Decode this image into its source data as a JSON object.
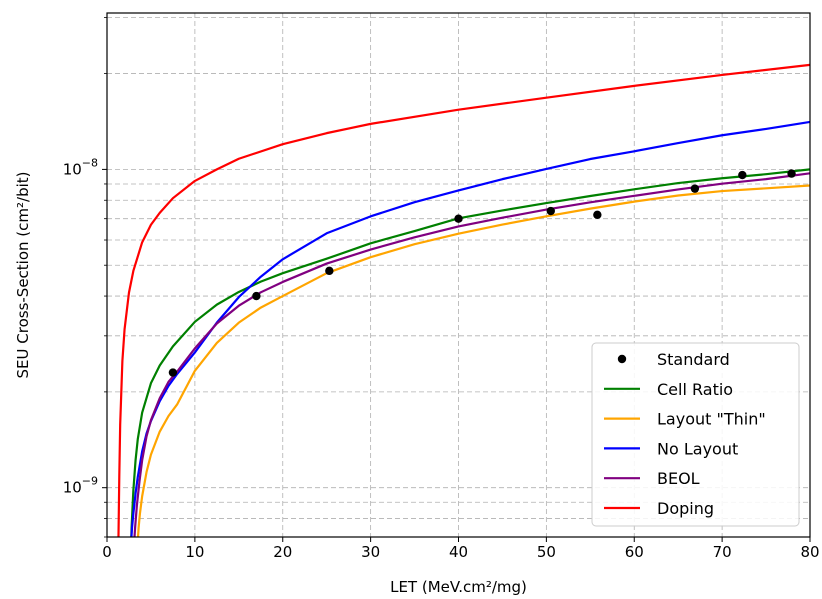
{
  "chart_data": {
    "type": "scatter",
    "xlabel": "LET (MeV.cm²/mg)",
    "ylabel": "SEU Cross-Section (cm²/bit)",
    "xlim": [
      0,
      80
    ],
    "ylim": [
      7e-10,
      3.1e-08
    ],
    "yscale": "log",
    "grid": true,
    "legend_position": "lower right",
    "x_ticks": [
      {
        "value": 0,
        "label": "0"
      },
      {
        "value": 10,
        "label": "10"
      },
      {
        "value": 20,
        "label": "20"
      },
      {
        "value": 30,
        "label": "30"
      },
      {
        "value": 40,
        "label": "40"
      },
      {
        "value": 50,
        "label": "50"
      },
      {
        "value": 60,
        "label": "60"
      },
      {
        "value": 70,
        "label": "70"
      },
      {
        "value": 80,
        "label": "80"
      }
    ],
    "y_major_ticks": [
      {
        "value": 1e-09,
        "base": "10",
        "exp": "−9"
      },
      {
        "value": 1e-08,
        "base": "10",
        "exp": "−8"
      }
    ],
    "series": [
      {
        "name": "Standard",
        "kind": "markers",
        "color": "#000000",
        "x": [
          7.5,
          17.0,
          25.3,
          40.0,
          50.5,
          55.8,
          66.9,
          72.3,
          77.9
        ],
        "y": [
          2.3e-09,
          4e-09,
          4.8e-09,
          7e-09,
          7.4e-09,
          7.2e-09,
          8.7e-09,
          9.6e-09,
          9.7e-09
        ]
      },
      {
        "name": "Cell Ratio",
        "kind": "line",
        "color": "#008000",
        "x": [
          2.75,
          2.8,
          2.9,
          3.0,
          3.25,
          3.5,
          4,
          5,
          6,
          7.5,
          10,
          12.5,
          15,
          17.5,
          20,
          25,
          30,
          35,
          40,
          45,
          50,
          55,
          60,
          65,
          70,
          75,
          80
        ],
        "y": [
          6.8e-10,
          7.5e-10,
          8.6e-10,
          9.8e-10,
          1.22e-09,
          1.42e-09,
          1.72e-09,
          2.13e-09,
          2.42e-09,
          2.78e-09,
          3.32e-09,
          3.76e-09,
          4.12e-09,
          4.44e-09,
          4.72e-09,
          5.24e-09,
          5.86e-09,
          6.4e-09,
          7.02e-09,
          7.43e-09,
          7.84e-09,
          8.25e-09,
          8.66e-09,
          9.06e-09,
          9.38e-09,
          9.66e-09,
          1e-08
        ]
      },
      {
        "name": "Layout \"Thin\"",
        "kind": "line",
        "color": "#FFA500",
        "x": [
          3.5,
          3.6,
          3.75,
          4,
          4.5,
          5,
          6,
          7,
          8,
          10,
          12.5,
          15,
          17.5,
          20,
          25,
          30,
          35,
          40,
          45,
          50,
          55,
          60,
          65,
          70,
          75,
          80
        ],
        "y": [
          6.8e-10,
          7.5e-10,
          8.3e-10,
          9.4e-10,
          1.12e-09,
          1.27e-09,
          1.5e-09,
          1.68e-09,
          1.83e-09,
          2.33e-09,
          2.85e-09,
          3.3e-09,
          3.68e-09,
          4e-09,
          4.72e-09,
          5.3e-09,
          5.82e-09,
          6.28e-09,
          6.71e-09,
          7.12e-09,
          7.53e-09,
          7.92e-09,
          8.28e-09,
          8.55e-09,
          8.72e-09,
          8.9e-09
        ]
      },
      {
        "name": "No Layout",
        "kind": "line",
        "color": "#0000FF",
        "x": [
          2.75,
          2.85,
          3.0,
          3.25,
          3.5,
          4,
          4.5,
          5,
          6,
          7,
          8,
          10,
          12.5,
          15,
          17.5,
          20,
          25,
          30,
          35,
          40,
          45,
          50,
          55,
          60,
          65,
          70,
          75,
          80
        ],
        "y": [
          6.8e-10,
          7.5e-10,
          8.3e-10,
          9.6e-10,
          1.08e-09,
          1.3e-09,
          1.48e-09,
          1.62e-09,
          1.87e-09,
          2.09e-09,
          2.28e-09,
          2.66e-09,
          3.3e-09,
          3.97e-09,
          4.6e-09,
          5.22e-09,
          6.3e-09,
          7.12e-09,
          7.89e-09,
          8.59e-09,
          9.32e-09,
          1.003e-08,
          1.078e-08,
          1.14e-08,
          1.21e-08,
          1.28e-08,
          1.34e-08,
          1.41e-08
        ]
      },
      {
        "name": "BEOL",
        "kind": "line",
        "color": "#800080",
        "x": [
          3.1,
          3.2,
          3.4,
          3.7,
          4,
          4.5,
          5,
          6,
          7,
          8,
          10,
          12.5,
          15,
          17.5,
          20,
          25,
          30,
          35,
          40,
          45,
          50,
          55,
          60,
          65,
          70,
          75,
          80
        ],
        "y": [
          6.8e-10,
          7.5e-10,
          8.8e-10,
          1.05e-09,
          1.22e-09,
          1.45e-09,
          1.63e-09,
          1.91e-09,
          2.15e-09,
          2.32e-09,
          2.74e-09,
          3.28e-09,
          3.73e-09,
          4.11e-09,
          4.43e-09,
          5.06e-09,
          5.6e-09,
          6.12e-09,
          6.62e-09,
          7.05e-09,
          7.48e-09,
          7.88e-09,
          8.26e-09,
          8.65e-09,
          9.02e-09,
          9.32e-09,
          9.72e-09
        ]
      },
      {
        "name": "Doping",
        "kind": "line",
        "color": "#FF0000",
        "x": [
          1.3,
          1.35,
          1.4,
          1.5,
          1.75,
          2,
          2.5,
          3,
          4,
          5,
          6,
          7.5,
          10,
          12.5,
          15,
          20,
          25,
          30,
          40,
          50,
          60,
          70,
          80
        ],
        "y": [
          6.8e-10,
          8.6e-10,
          1.09e-09,
          1.58e-09,
          2.5e-09,
          3.15e-09,
          4.1e-09,
          4.8e-09,
          5.9e-09,
          6.7e-09,
          7.3e-09,
          8.12e-09,
          9.2e-09,
          1e-08,
          1.08e-08,
          1.2e-08,
          1.3e-08,
          1.39e-08,
          1.54e-08,
          1.68e-08,
          1.83e-08,
          1.98e-08,
          2.13e-08
        ]
      }
    ]
  }
}
